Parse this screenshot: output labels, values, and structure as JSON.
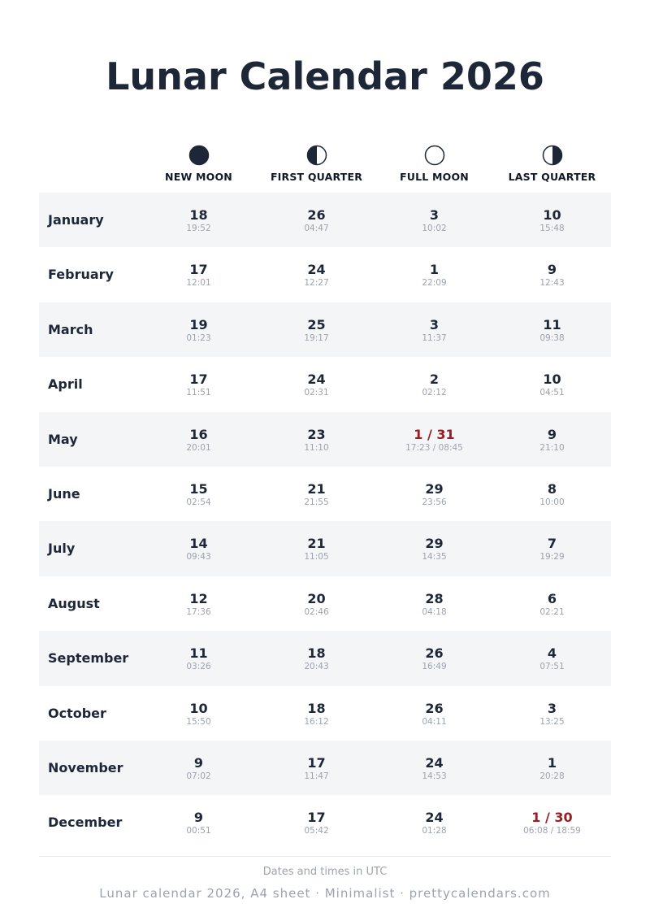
{
  "title": "Lunar Calendar 2026",
  "phases": [
    {
      "label": "NEW MOON",
      "icon": "new-moon-icon"
    },
    {
      "label": "FIRST QUARTER",
      "icon": "first-quarter-icon"
    },
    {
      "label": "FULL MOON",
      "icon": "full-moon-icon"
    },
    {
      "label": "LAST QUARTER",
      "icon": "last-quarter-icon"
    }
  ],
  "colors": {
    "text": "#1e2737",
    "highlight": "#9b1c23",
    "muted": "#9ca3af",
    "row_shade": "#f4f5f7"
  },
  "months": [
    {
      "name": "January",
      "cells": [
        {
          "day": "18",
          "time": "19:52"
        },
        {
          "day": "26",
          "time": "04:47"
        },
        {
          "day": "3",
          "time": "10:02"
        },
        {
          "day": "10",
          "time": "15:48"
        }
      ]
    },
    {
      "name": "February",
      "cells": [
        {
          "day": "17",
          "time": "12:01"
        },
        {
          "day": "24",
          "time": "12:27"
        },
        {
          "day": "1",
          "time": "22:09"
        },
        {
          "day": "9",
          "time": "12:43"
        }
      ]
    },
    {
      "name": "March",
      "cells": [
        {
          "day": "19",
          "time": "01:23"
        },
        {
          "day": "25",
          "time": "19:17"
        },
        {
          "day": "3",
          "time": "11:37"
        },
        {
          "day": "11",
          "time": "09:38"
        }
      ]
    },
    {
      "name": "April",
      "cells": [
        {
          "day": "17",
          "time": "11:51"
        },
        {
          "day": "24",
          "time": "02:31"
        },
        {
          "day": "2",
          "time": "02:12"
        },
        {
          "day": "10",
          "time": "04:51"
        }
      ]
    },
    {
      "name": "May",
      "cells": [
        {
          "day": "16",
          "time": "20:01"
        },
        {
          "day": "23",
          "time": "11:10"
        },
        {
          "day": "1 / 31",
          "time": "17:23 / 08:45",
          "highlight": true
        },
        {
          "day": "9",
          "time": "21:10"
        }
      ]
    },
    {
      "name": "June",
      "cells": [
        {
          "day": "15",
          "time": "02:54"
        },
        {
          "day": "21",
          "time": "21:55"
        },
        {
          "day": "29",
          "time": "23:56"
        },
        {
          "day": "8",
          "time": "10:00"
        }
      ]
    },
    {
      "name": "July",
      "cells": [
        {
          "day": "14",
          "time": "09:43"
        },
        {
          "day": "21",
          "time": "11:05"
        },
        {
          "day": "29",
          "time": "14:35"
        },
        {
          "day": "7",
          "time": "19:29"
        }
      ]
    },
    {
      "name": "August",
      "cells": [
        {
          "day": "12",
          "time": "17:36"
        },
        {
          "day": "20",
          "time": "02:46"
        },
        {
          "day": "28",
          "time": "04:18"
        },
        {
          "day": "6",
          "time": "02:21"
        }
      ]
    },
    {
      "name": "September",
      "cells": [
        {
          "day": "11",
          "time": "03:26"
        },
        {
          "day": "18",
          "time": "20:43"
        },
        {
          "day": "26",
          "time": "16:49"
        },
        {
          "day": "4",
          "time": "07:51"
        }
      ]
    },
    {
      "name": "October",
      "cells": [
        {
          "day": "10",
          "time": "15:50"
        },
        {
          "day": "18",
          "time": "16:12"
        },
        {
          "day": "26",
          "time": "04:11"
        },
        {
          "day": "3",
          "time": "13:25"
        }
      ]
    },
    {
      "name": "November",
      "cells": [
        {
          "day": "9",
          "time": "07:02"
        },
        {
          "day": "17",
          "time": "11:47"
        },
        {
          "day": "24",
          "time": "14:53"
        },
        {
          "day": "1",
          "time": "20:28"
        }
      ]
    },
    {
      "name": "December",
      "cells": [
        {
          "day": "9",
          "time": "00:51"
        },
        {
          "day": "17",
          "time": "05:42"
        },
        {
          "day": "24",
          "time": "01:28"
        },
        {
          "day": "1 / 30",
          "time": "06:08 / 18:59",
          "highlight": true
        }
      ]
    }
  ],
  "note": "Dates and times in UTC",
  "footer": "Lunar calendar 2026, A4 sheet · Minimalist · prettycalendars.com"
}
